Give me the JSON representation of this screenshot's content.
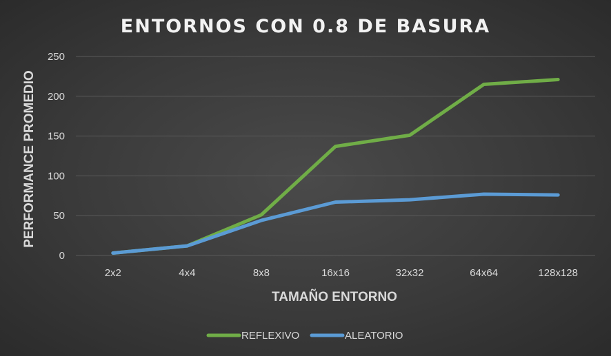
{
  "chart_data": {
    "type": "line",
    "title": "ENTORNOS CON 0.8 DE BASURA",
    "xlabel": "TAMAÑO ENTORNO",
    "ylabel": "PERFORMANCE PROMEDIO",
    "categories": [
      "2x2",
      "4x4",
      "8x8",
      "16x16",
      "32x32",
      "64x64",
      "128x128"
    ],
    "ylim": [
      0,
      250
    ],
    "yticks": [
      0,
      50,
      100,
      150,
      200,
      250
    ],
    "grid": true,
    "legend_position": "bottom",
    "series": [
      {
        "name": "REFLEXIVO",
        "color": "#70ad47",
        "values": [
          3,
          12,
          51,
          137,
          151,
          215,
          221
        ]
      },
      {
        "name": "ALEATORIO",
        "color": "#5b9bd5",
        "values": [
          3,
          12,
          44,
          67,
          70,
          77,
          76
        ]
      }
    ]
  }
}
